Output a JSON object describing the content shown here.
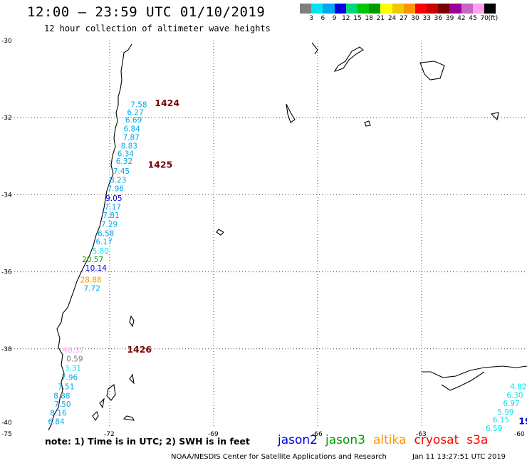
{
  "title": "12:00 – 23:59 UTC 01/10/2019",
  "subtitle": "12 hour collection of altimeter wave heights",
  "colorbar": {
    "colors": [
      "#7f7f7f",
      "#00e5ee",
      "#00a8f0",
      "#0000e0",
      "#00d87a",
      "#00c800",
      "#009a00",
      "#ffff00",
      "#f0c800",
      "#ff9400",
      "#ff0000",
      "#c80000",
      "#780000",
      "#9a009a",
      "#c864c8",
      "#ffa0f0",
      "#000000"
    ],
    "labels": [
      "3",
      "6",
      "9",
      "12",
      "15",
      "18",
      "21",
      "24",
      "27",
      "30",
      "33",
      "36",
      "39",
      "42",
      "45",
      "70",
      "(ft)"
    ]
  },
  "axes": {
    "lat_ticks": [
      "-30",
      "-32",
      "-34",
      "-36",
      "-38",
      "-40"
    ],
    "lon_ticks": [
      "-75",
      "-72",
      "-69",
      "-66",
      "-63",
      "-60"
    ]
  },
  "tracks": [
    {
      "name": "1424",
      "color": "#780000",
      "lon": -70.7,
      "lat": -31.7
    },
    {
      "name": "1425",
      "color": "#780000",
      "lon": -70.9,
      "lat": -33.3
    },
    {
      "name": "1426",
      "color": "#780000",
      "lon": -71.5,
      "lat": -38.1
    },
    {
      "name": "19",
      "color": "#0000e0",
      "lon": -60.2,
      "lat": -39.95
    }
  ],
  "wave_labels": [
    {
      "text": "7.58",
      "color": "#00a8f0",
      "lon": -71.4,
      "lat": -31.73
    },
    {
      "text": "6.27",
      "color": "#00a8f0",
      "lon": -71.5,
      "lat": -31.93
    },
    {
      "text": "6.69",
      "color": "#00a8f0",
      "lon": -71.55,
      "lat": -32.13
    },
    {
      "text": "6.84",
      "color": "#00a8f0",
      "lon": -71.6,
      "lat": -32.36
    },
    {
      "text": "7.87",
      "color": "#00a8f0",
      "lon": -71.62,
      "lat": -32.58
    },
    {
      "text": "8.83",
      "color": "#00a8f0",
      "lon": -71.68,
      "lat": -32.8
    },
    {
      "text": "6.34",
      "color": "#00a8f0",
      "lon": -71.78,
      "lat": -33.0
    },
    {
      "text": "6.32",
      "color": "#00a8f0",
      "lon": -71.82,
      "lat": -33.2
    },
    {
      "text": "7.45",
      "color": "#00a8f0",
      "lon": -71.9,
      "lat": -33.46
    },
    {
      "text": "8.23",
      "color": "#00a8f0",
      "lon": -72.0,
      "lat": -33.69
    },
    {
      "text": "7.96",
      "color": "#00a8f0",
      "lon": -72.07,
      "lat": -33.91
    },
    {
      "text": "9.05",
      "color": "#0000e0",
      "lon": -72.12,
      "lat": -34.16
    },
    {
      "text": "7.17",
      "color": "#00a8f0",
      "lon": -72.15,
      "lat": -34.38
    },
    {
      "text": "7.81",
      "color": "#00a8f0",
      "lon": -72.2,
      "lat": -34.6
    },
    {
      "text": "7.29",
      "color": "#00a8f0",
      "lon": -72.25,
      "lat": -34.83
    },
    {
      "text": "6.58",
      "color": "#00a8f0",
      "lon": -72.35,
      "lat": -35.07
    },
    {
      "text": "6.17",
      "color": "#00a8f0",
      "lon": -72.4,
      "lat": -35.29
    },
    {
      "text": "5.80",
      "color": "#00e5ee",
      "lon": -72.5,
      "lat": -35.53
    },
    {
      "text": "20.57",
      "color": "#009a00",
      "lon": -72.8,
      "lat": -35.75
    },
    {
      "text": "10.14",
      "color": "#0000e0",
      "lon": -72.7,
      "lat": -35.97
    },
    {
      "text": "28.88",
      "color": "#f0a000",
      "lon": -72.85,
      "lat": -36.28
    },
    {
      "text": "7.72",
      "color": "#00a8f0",
      "lon": -72.75,
      "lat": -36.5
    },
    {
      "text": "48.37",
      "color": "#ffa0f0",
      "lon": -73.35,
      "lat": -38.1
    },
    {
      "text": "0.59",
      "color": "#7f7f7f",
      "lon": -73.25,
      "lat": -38.33
    },
    {
      "text": "3.31",
      "color": "#00e5ee",
      "lon": -73.3,
      "lat": -38.57
    },
    {
      "text": "7.96",
      "color": "#00a8f0",
      "lon": -73.4,
      "lat": -38.81
    },
    {
      "text": "7.51",
      "color": "#00a8f0",
      "lon": -73.5,
      "lat": -39.05
    },
    {
      "text": "8.88",
      "color": "#00a8f0",
      "lon": -73.62,
      "lat": -39.29
    },
    {
      "text": "7.50",
      "color": "#00a8f0",
      "lon": -73.6,
      "lat": -39.5
    },
    {
      "text": "8.16",
      "color": "#00a8f0",
      "lon": -73.72,
      "lat": -39.73
    },
    {
      "text": "6.84",
      "color": "#00a8f0",
      "lon": -73.78,
      "lat": -39.95
    },
    {
      "text": "4.82",
      "color": "#00e5ee",
      "lon": -60.45,
      "lat": -39.05
    },
    {
      "text": "6.30",
      "color": "#00e5ee",
      "lon": -60.55,
      "lat": -39.27
    },
    {
      "text": "6.97",
      "color": "#00e5ee",
      "lon": -60.65,
      "lat": -39.48
    },
    {
      "text": "5.99",
      "color": "#00e5ee",
      "lon": -60.82,
      "lat": -39.7
    },
    {
      "text": "6.15",
      "color": "#00e5ee",
      "lon": -60.95,
      "lat": -39.91
    },
    {
      "text": "6.59",
      "color": "#00e5ee",
      "lon": -61.15,
      "lat": -40.13
    }
  ],
  "note": "note: 1) Time is in UTC; 2) SWH is in feet",
  "legend": [
    {
      "name": "jason2",
      "color": "#0000e0"
    },
    {
      "name": "jason3",
      "color": "#009a00"
    },
    {
      "name": "altika",
      "color": "#ff9400"
    },
    {
      "name": "cryosat",
      "color": "#ff0000"
    },
    {
      "name": "s3a",
      "color": "#ff0000"
    }
  ],
  "footer_left": "NOAA/NESDIS Center for Satellite Applications and Research",
  "footer_right": "Jan 11 13:27:51 UTC 2019"
}
